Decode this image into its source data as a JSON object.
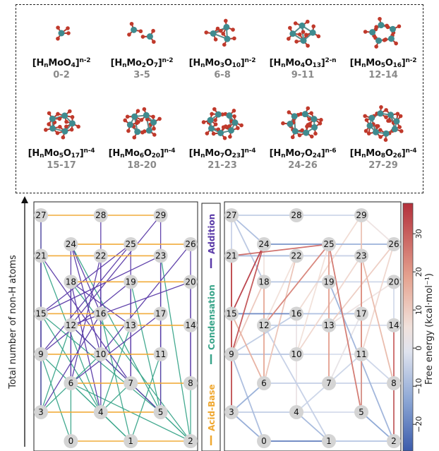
{
  "clusters": [
    {
      "pre": "[H",
      "sub1": "n",
      "mid": "MoO",
      "sub2": "4",
      "post": "]",
      "sup": "n-2",
      "range": "0-2"
    },
    {
      "pre": "[H",
      "sub1": "n",
      "mid": "Mo",
      "sub2": "2",
      "mid2": "O",
      "sub3": "7",
      "post": "]",
      "sup": "n-2",
      "range": "3-5"
    },
    {
      "pre": "[H",
      "sub1": "n",
      "mid": "Mo",
      "sub2": "3",
      "mid2": "O",
      "sub3": "10",
      "post": "]",
      "sup": "n-2",
      "range": "6-8"
    },
    {
      "pre": "[H",
      "sub1": "n",
      "mid": "Mo",
      "sub2": "4",
      "mid2": "O",
      "sub3": "13",
      "post": "]",
      "sup": "2-n",
      "range": "9-11"
    },
    {
      "pre": "[H",
      "sub1": "n",
      "mid": "Mo",
      "sub2": "5",
      "mid2": "O",
      "sub3": "16",
      "post": "]",
      "sup": "n-2",
      "range": "12-14"
    },
    {
      "pre": "[H",
      "sub1": "n",
      "mid": "Mo",
      "sub2": "5",
      "mid2": "O",
      "sub3": "17",
      "post": "]",
      "sup": "n-4",
      "range": "15-17"
    },
    {
      "pre": "[H",
      "sub1": "n",
      "mid": "Mo",
      "sub2": "6",
      "mid2": "O",
      "sub3": "20",
      "post": "]",
      "sup": "n-4",
      "range": "18-20"
    },
    {
      "pre": "[H",
      "sub1": "n",
      "mid": "Mo",
      "sub2": "7",
      "mid2": "O",
      "sub3": "23",
      "post": "]",
      "sup": "n-4",
      "range": "21-23"
    },
    {
      "pre": "[H",
      "sub1": "n",
      "mid": "Mo",
      "sub2": "7",
      "mid2": "O",
      "sub3": "24",
      "post": "]",
      "sup": "n-6",
      "range": "24-26"
    },
    {
      "pre": "[H",
      "sub1": "n",
      "mid": "Mo",
      "sub2": "8",
      "mid2": "O",
      "sub3": "26",
      "post": "]",
      "sup": "n-4",
      "range": "27-29"
    }
  ],
  "y_axis_label": "Total number of non-H atoms",
  "legend": {
    "acid_base": {
      "label": "Acid-Base",
      "color": "#f0a830"
    },
    "condensation": {
      "label": "Condensation",
      "color": "#3aa58a"
    },
    "addition": {
      "label": "Addition",
      "color": "#5a3aa8"
    }
  },
  "colorbar": {
    "label": "Free energy (kcal·mol⁻¹)",
    "ticks": [
      "30",
      "20",
      "10",
      "0",
      "−10",
      "−20"
    ],
    "tick_values": [
      30,
      20,
      10,
      0,
      -10,
      -20
    ],
    "min": -27,
    "max": 38
  },
  "nodes": [
    {
      "id": "0",
      "x": 1,
      "y": 0
    },
    {
      "id": "1",
      "x": 3,
      "y": 0
    },
    {
      "id": "2",
      "x": 5,
      "y": 0
    },
    {
      "id": "3",
      "x": 0,
      "y": 1
    },
    {
      "id": "4",
      "x": 2,
      "y": 1
    },
    {
      "id": "5",
      "x": 4,
      "y": 1
    },
    {
      "id": "6",
      "x": 1,
      "y": 2
    },
    {
      "id": "7",
      "x": 3,
      "y": 2
    },
    {
      "id": "8",
      "x": 5,
      "y": 2
    },
    {
      "id": "9",
      "x": 0,
      "y": 3
    },
    {
      "id": "10",
      "x": 2,
      "y": 3
    },
    {
      "id": "11",
      "x": 4,
      "y": 3
    },
    {
      "id": "12",
      "x": 1,
      "y": 4
    },
    {
      "id": "13",
      "x": 3,
      "y": 4
    },
    {
      "id": "14",
      "x": 5,
      "y": 4
    },
    {
      "id": "15",
      "x": 0,
      "y": 4.4
    },
    {
      "id": "16",
      "x": 2,
      "y": 4.4
    },
    {
      "id": "17",
      "x": 4,
      "y": 4.4
    },
    {
      "id": "18",
      "x": 1,
      "y": 5.5
    },
    {
      "id": "19",
      "x": 3,
      "y": 5.5
    },
    {
      "id": "20",
      "x": 5,
      "y": 5.5
    },
    {
      "id": "21",
      "x": 0,
      "y": 6.4
    },
    {
      "id": "22",
      "x": 2,
      "y": 6.4
    },
    {
      "id": "23",
      "x": 4,
      "y": 6.4
    },
    {
      "id": "24",
      "x": 1,
      "y": 6.8
    },
    {
      "id": "25",
      "x": 3,
      "y": 6.8
    },
    {
      "id": "26",
      "x": 5,
      "y": 6.8
    },
    {
      "id": "27",
      "x": 0,
      "y": 7.8
    },
    {
      "id": "28",
      "x": 2,
      "y": 7.8
    },
    {
      "id": "29",
      "x": 4,
      "y": 7.8
    }
  ],
  "edges_acid_base": [
    [
      "0",
      "1"
    ],
    [
      "1",
      "2"
    ],
    [
      "3",
      "4"
    ],
    [
      "4",
      "5"
    ],
    [
      "6",
      "7"
    ],
    [
      "7",
      "8"
    ],
    [
      "9",
      "10"
    ],
    [
      "10",
      "11"
    ],
    [
      "12",
      "13"
    ],
    [
      "13",
      "14"
    ],
    [
      "15",
      "16"
    ],
    [
      "16",
      "17"
    ],
    [
      "18",
      "19"
    ],
    [
      "19",
      "20"
    ],
    [
      "21",
      "22"
    ],
    [
      "22",
      "23"
    ],
    [
      "24",
      "25"
    ],
    [
      "25",
      "26"
    ],
    [
      "27",
      "28"
    ],
    [
      "28",
      "29"
    ]
  ],
  "edges_condensation": [
    [
      "0",
      "6"
    ],
    [
      "1",
      "6"
    ],
    [
      "2",
      "6"
    ],
    [
      "2",
      "7"
    ],
    [
      "2",
      "8"
    ],
    [
      "0",
      "9"
    ],
    [
      "1",
      "9"
    ],
    [
      "2",
      "12"
    ],
    [
      "3",
      "12"
    ],
    [
      "4",
      "15"
    ],
    [
      "5",
      "15"
    ],
    [
      "2",
      "18"
    ],
    [
      "3",
      "21"
    ],
    [
      "4",
      "21"
    ],
    [
      "5",
      "24"
    ],
    [
      "3",
      "27"
    ],
    [
      "1",
      "16"
    ],
    [
      "4",
      "13"
    ],
    [
      "5",
      "19"
    ],
    [
      "2",
      "23"
    ],
    [
      "3",
      "10"
    ],
    [
      "4",
      "7"
    ],
    [
      "5",
      "17"
    ],
    [
      "1",
      "11"
    ]
  ],
  "edges_addition": [
    [
      "6",
      "18"
    ],
    [
      "7",
      "19"
    ],
    [
      "8",
      "20"
    ],
    [
      "9",
      "21"
    ],
    [
      "10",
      "22"
    ],
    [
      "11",
      "23"
    ],
    [
      "12",
      "24"
    ],
    [
      "13",
      "25"
    ],
    [
      "14",
      "26"
    ],
    [
      "15",
      "27"
    ],
    [
      "16",
      "28"
    ],
    [
      "17",
      "29"
    ],
    [
      "3",
      "9"
    ],
    [
      "4",
      "10"
    ],
    [
      "5",
      "11"
    ],
    [
      "6",
      "12"
    ],
    [
      "7",
      "13"
    ],
    [
      "8",
      "14"
    ],
    [
      "9",
      "15"
    ],
    [
      "10",
      "16"
    ],
    [
      "11",
      "17"
    ],
    [
      "9",
      "25"
    ],
    [
      "10",
      "24"
    ],
    [
      "15",
      "23"
    ],
    [
      "16",
      "22"
    ],
    [
      "12",
      "20"
    ],
    [
      "13",
      "18"
    ],
    [
      "6",
      "22"
    ],
    [
      "7",
      "21"
    ],
    [
      "9",
      "19"
    ],
    [
      "10",
      "26"
    ],
    [
      "3",
      "16"
    ],
    [
      "4",
      "18"
    ],
    [
      "5",
      "12"
    ],
    [
      "6",
      "17"
    ],
    [
      "12",
      "29"
    ],
    [
      "15",
      "25"
    ],
    [
      "16",
      "24"
    ]
  ],
  "edges_energy": [
    {
      "a": "3",
      "b": "21",
      "g": 34
    },
    {
      "a": "6",
      "b": "18",
      "g": 18
    },
    {
      "a": "9",
      "b": "21",
      "g": 25
    },
    {
      "a": "9",
      "b": "24",
      "g": 32
    },
    {
      "a": "15",
      "b": "24",
      "g": 36
    },
    {
      "a": "21",
      "b": "25",
      "g": 28
    },
    {
      "a": "24",
      "b": "25",
      "g": -18
    },
    {
      "a": "25",
      "b": "26",
      "g": -12
    },
    {
      "a": "21",
      "b": "22",
      "g": -10
    },
    {
      "a": "22",
      "b": "23",
      "g": -5
    },
    {
      "a": "18",
      "b": "19",
      "g": -8
    },
    {
      "a": "19",
      "b": "20",
      "g": -4
    },
    {
      "a": "15",
      "b": "16",
      "g": -20
    },
    {
      "a": "16",
      "b": "17",
      "g": -9
    },
    {
      "a": "12",
      "b": "13",
      "g": -6
    },
    {
      "a": "13",
      "b": "14",
      "g": -3
    },
    {
      "a": "9",
      "b": "10",
      "g": -7
    },
    {
      "a": "10",
      "b": "11",
      "g": -2
    },
    {
      "a": "6",
      "b": "7",
      "g": -5
    },
    {
      "a": "7",
      "b": "8",
      "g": -4
    },
    {
      "a": "3",
      "b": "4",
      "g": -6
    },
    {
      "a": "4",
      "b": "5",
      "g": -3
    },
    {
      "a": "0",
      "b": "1",
      "g": -22
    },
    {
      "a": "1",
      "b": "2",
      "g": -8
    },
    {
      "a": "27",
      "b": "28",
      "g": -6
    },
    {
      "a": "28",
      "b": "29",
      "g": -4
    },
    {
      "a": "5",
      "b": "23",
      "g": 22
    },
    {
      "a": "2",
      "b": "14",
      "g": 30
    },
    {
      "a": "5",
      "b": "25",
      "g": 26
    },
    {
      "a": "8",
      "b": "23",
      "g": 14
    },
    {
      "a": "7",
      "b": "25",
      "g": 20
    },
    {
      "a": "11",
      "b": "23",
      "g": 17
    },
    {
      "a": "12",
      "b": "25",
      "g": 24
    },
    {
      "a": "6",
      "b": "22",
      "g": 12
    },
    {
      "a": "3",
      "b": "15",
      "g": 9
    },
    {
      "a": "6",
      "b": "15",
      "g": 16
    },
    {
      "a": "9",
      "b": "18",
      "g": 11
    },
    {
      "a": "10",
      "b": "23",
      "g": 8
    },
    {
      "a": "13",
      "b": "26",
      "g": 10
    },
    {
      "a": "17",
      "b": "29",
      "g": 13
    },
    {
      "a": "16",
      "b": "29",
      "g": 7
    },
    {
      "a": "2",
      "b": "5",
      "g": -14
    },
    {
      "a": "3",
      "b": "6",
      "g": -12
    },
    {
      "a": "0",
      "b": "9",
      "g": -9
    },
    {
      "a": "1",
      "b": "12",
      "g": -5
    },
    {
      "a": "2",
      "b": "19",
      "g": -11
    },
    {
      "a": "4",
      "b": "11",
      "g": -4
    },
    {
      "a": "5",
      "b": "17",
      "g": -8
    },
    {
      "a": "1",
      "b": "4",
      "g": -10
    },
    {
      "a": "6",
      "b": "24",
      "g": 5
    },
    {
      "a": "10",
      "b": "25",
      "g": 6
    },
    {
      "a": "13",
      "b": "20",
      "g": 4
    },
    {
      "a": "14",
      "b": "20",
      "g": -3
    },
    {
      "a": "18",
      "b": "27",
      "g": -7
    },
    {
      "a": "21",
      "b": "27",
      "g": -5
    },
    {
      "a": "4",
      "b": "16",
      "g": 3
    },
    {
      "a": "7",
      "b": "17",
      "g": 2
    },
    {
      "a": "12",
      "b": "22",
      "g": 6
    },
    {
      "a": "9",
      "b": "16",
      "g": -6
    },
    {
      "a": "11",
      "b": "26",
      "g": 8
    },
    {
      "a": "8",
      "b": "11",
      "g": -4
    },
    {
      "a": "15",
      "b": "21",
      "g": 15
    },
    {
      "a": "24",
      "b": "27",
      "g": -9
    },
    {
      "a": "26",
      "b": "29",
      "g": 4
    },
    {
      "a": "0",
      "b": "3",
      "g": -13
    },
    {
      "a": "2",
      "b": "8",
      "g": -6
    }
  ]
}
